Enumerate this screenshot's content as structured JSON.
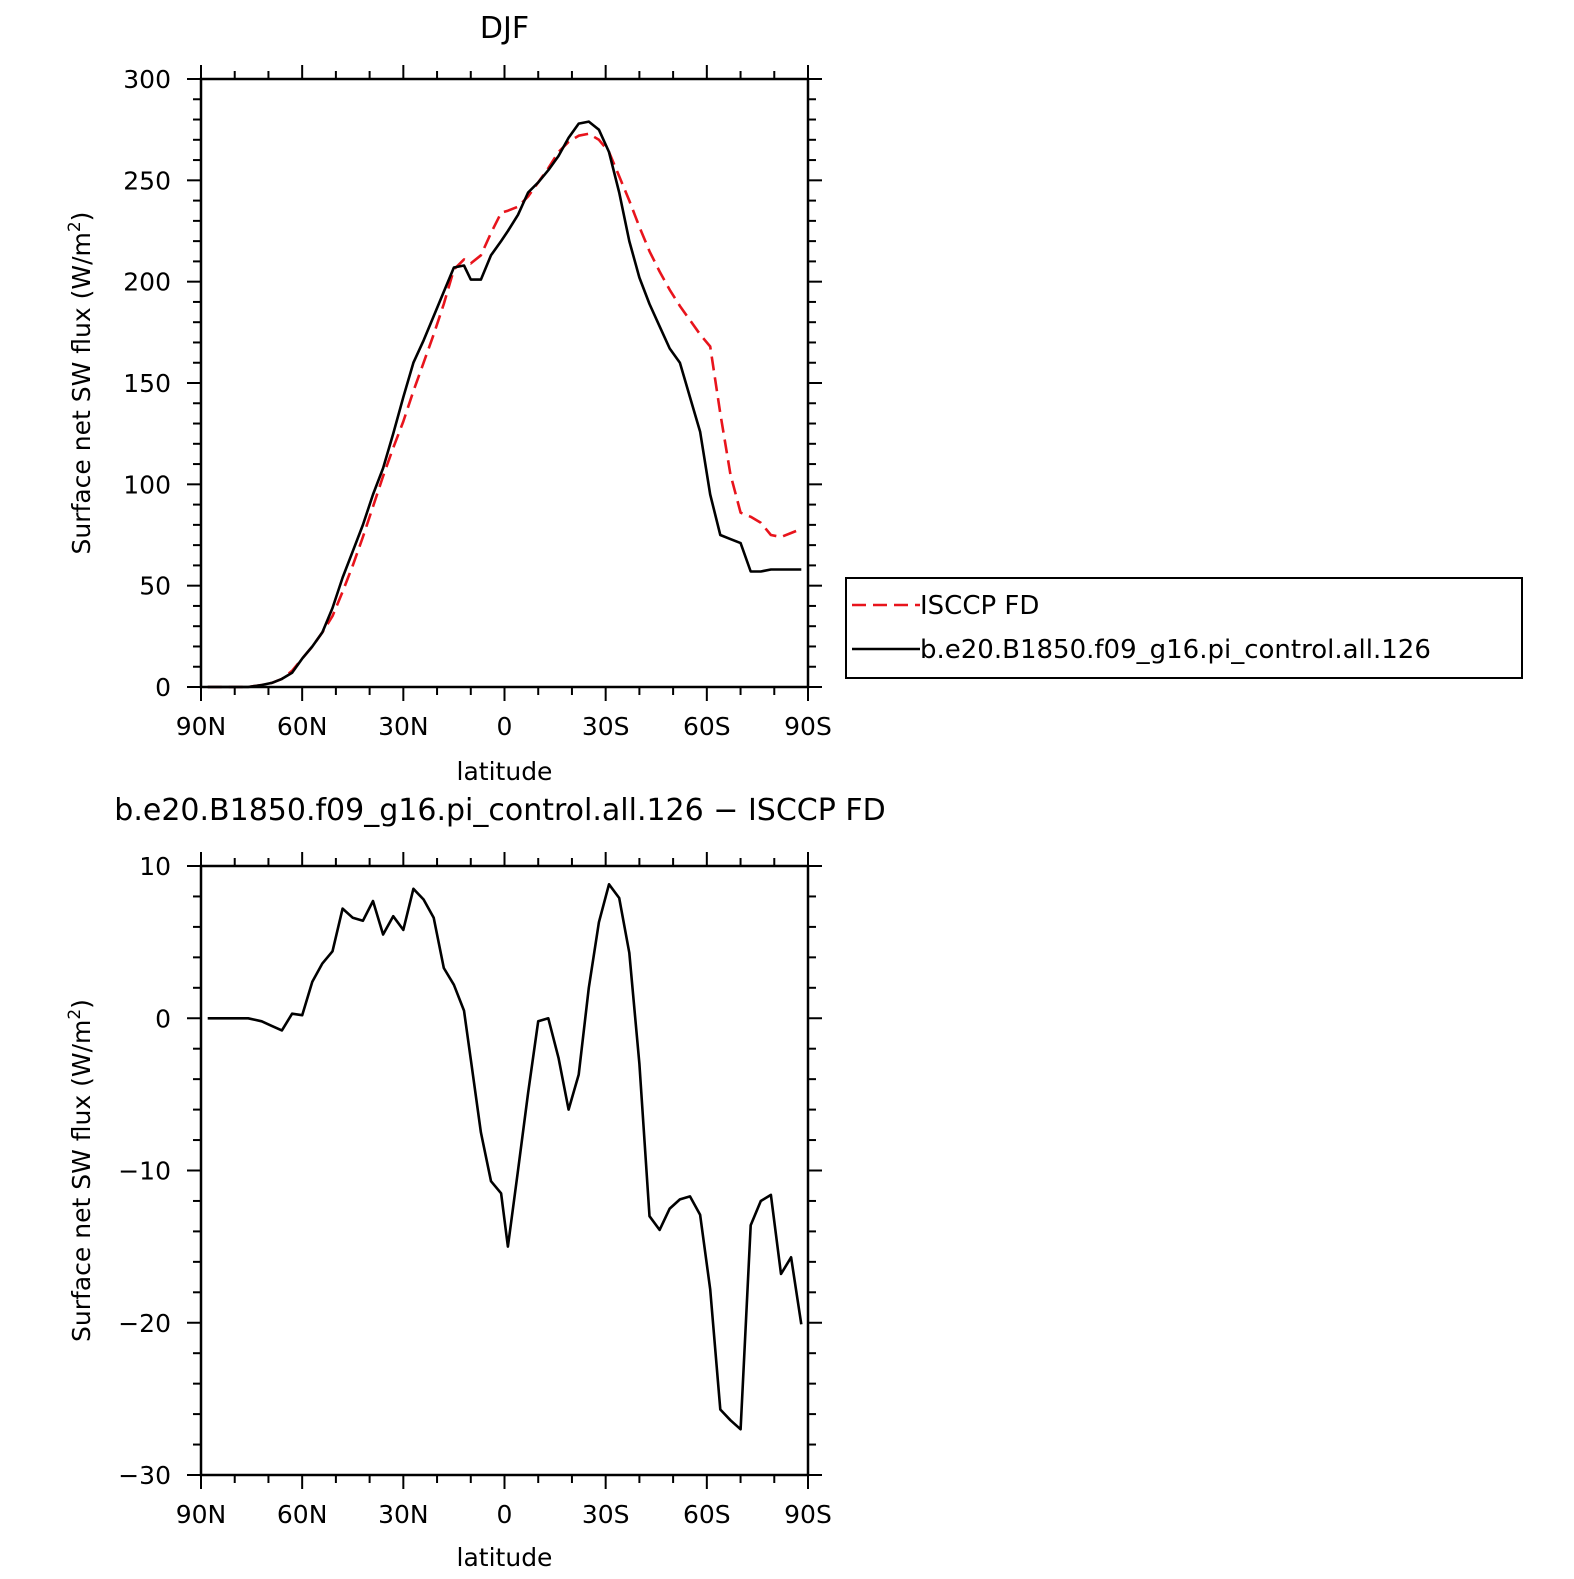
{
  "chart_data": [
    {
      "type": "line",
      "title": "DJF",
      "xlabel": "latitude",
      "ylabel": "Surface net SW flux (W/m²)",
      "ylabel_main": "Surface net SW flux (W/m",
      "ylabel_sup": "2",
      "ylabel_end": ")",
      "xlim": [
        90,
        -90
      ],
      "ylim": [
        0,
        300
      ],
      "xticks": [
        90,
        60,
        30,
        0,
        -30,
        -60,
        -90
      ],
      "xtick_labels": [
        "90N",
        "60N",
        "30N",
        "0",
        "30S",
        "60S",
        "90S"
      ],
      "yticks": [
        0,
        50,
        100,
        150,
        200,
        250,
        300
      ],
      "ytick_labels": [
        "0",
        "50",
        "100",
        "150",
        "200",
        "250",
        "300"
      ],
      "legend": "right",
      "series": [
        {
          "name": "ISCCP FD",
          "color": "#e8141c",
          "dash": "dashed",
          "x": [
            88,
            84,
            80,
            76,
            72,
            69,
            66,
            63,
            60,
            57,
            54,
            51,
            48,
            45,
            42,
            39,
            36,
            33,
            30,
            27,
            24,
            21,
            18,
            15,
            12,
            10,
            7,
            4,
            1,
            -1,
            -4,
            -7,
            -10,
            -13,
            -16,
            -19,
            -22,
            -25,
            -28,
            -31,
            -34,
            -37,
            -40,
            -43,
            -46,
            -49,
            -52,
            -55,
            -58,
            -61,
            -64,
            -67,
            -70,
            -73,
            -76,
            -79,
            -82,
            -85,
            -88
          ],
          "values": [
            0,
            0,
            0,
            0,
            1,
            2,
            4,
            8,
            14,
            20,
            27,
            35,
            47,
            60,
            74,
            89,
            104,
            118,
            131,
            146,
            160,
            174,
            189,
            206,
            211,
            209,
            213,
            224,
            234,
            235,
            237,
            242,
            249,
            256,
            264,
            269,
            272,
            273,
            270,
            264,
            252,
            240,
            227,
            215,
            205,
            196,
            188,
            181,
            174,
            168,
            135,
            105,
            86,
            84,
            81,
            75,
            74,
            76,
            78
          ]
        },
        {
          "name": "b.e20.B1850.f09_g16.pi_control.all.126",
          "color": "#000000",
          "dash": "solid",
          "x": [
            88,
            84,
            80,
            76,
            72,
            69,
            66,
            63,
            60,
            57,
            54,
            51,
            48,
            45,
            42,
            39,
            36,
            33,
            30,
            27,
            24,
            21,
            18,
            15,
            12,
            10,
            7,
            4,
            1,
            -1,
            -4,
            -7,
            -10,
            -13,
            -16,
            -19,
            -22,
            -25,
            -28,
            -31,
            -34,
            -37,
            -40,
            -43,
            -46,
            -49,
            -52,
            -55,
            -58,
            -61,
            -64,
            -67,
            -70,
            -73,
            -76,
            -79,
            -82,
            -85,
            -88
          ],
          "values": [
            0,
            0,
            0,
            0,
            1,
            2,
            4,
            7,
            14,
            20,
            27,
            39,
            54,
            67,
            80,
            95,
            108,
            125,
            143,
            160,
            171,
            183,
            195,
            207,
            208,
            201,
            201,
            213,
            220,
            225,
            233,
            244,
            249,
            255,
            262,
            271,
            278,
            279,
            275,
            264,
            244,
            220,
            202,
            189,
            178,
            167,
            160,
            143,
            126,
            95,
            75,
            73,
            71,
            57,
            57,
            58,
            58,
            58,
            58
          ]
        }
      ]
    },
    {
      "type": "line",
      "title": "b.e20.B1850.f09_g16.pi_control.all.126 − ISCCP FD",
      "xlabel": "latitude",
      "ylabel": "Surface net SW flux (W/m²)",
      "ylabel_main": "Surface net SW flux (W/m",
      "ylabel_sup": "2",
      "ylabel_end": ")",
      "xlim": [
        90,
        -90
      ],
      "ylim": [
        -30,
        10
      ],
      "xticks": [
        90,
        60,
        30,
        0,
        -30,
        -60,
        -90
      ],
      "xtick_labels": [
        "90N",
        "60N",
        "30N",
        "0",
        "30S",
        "60S",
        "90S"
      ],
      "yticks": [
        -30,
        -20,
        -10,
        0,
        10
      ],
      "ytick_labels": [
        "−30",
        "−20",
        "−10",
        "0",
        "10"
      ],
      "series": [
        {
          "color": "#000000",
          "dash": "solid",
          "x": [
            88,
            84,
            80,
            76,
            72,
            69,
            66,
            63,
            60,
            57,
            54,
            51,
            48,
            45,
            42,
            39,
            36,
            33,
            30,
            27,
            24,
            21,
            18,
            15,
            12,
            10,
            7,
            4,
            1,
            -1,
            -4,
            -7,
            -10,
            -13,
            -16,
            -19,
            -22,
            -25,
            -28,
            -31,
            -34,
            -37,
            -40,
            -43,
            -46,
            -49,
            -52,
            -55,
            -58,
            -61,
            -64,
            -67,
            -70,
            -73,
            -76,
            -79,
            -82,
            -85,
            -88
          ],
          "values": [
            0,
            0,
            0,
            0,
            -0.2,
            -0.5,
            -0.8,
            0.3,
            0.2,
            2.4,
            3.6,
            4.4,
            7.2,
            6.6,
            6.4,
            7.7,
            5.5,
            6.7,
            5.8,
            8.5,
            7.8,
            6.6,
            3.3,
            2.2,
            0.5,
            -2.7,
            -7.5,
            -10.7,
            -11.5,
            -15.0,
            -10.0,
            -4.9,
            -0.2,
            0.0,
            -2.6,
            -6.0,
            -3.7,
            2.0,
            6.3,
            8.8,
            7.9,
            4.3,
            -3.0,
            -13.0,
            -13.9,
            -12.5,
            -11.9,
            -11.7,
            -12.9,
            -17.8,
            -25.7,
            -26.4,
            -27.0,
            -13.6,
            -12.0,
            -11.6,
            -16.8,
            -15.7,
            -20.1
          ]
        }
      ]
    }
  ]
}
